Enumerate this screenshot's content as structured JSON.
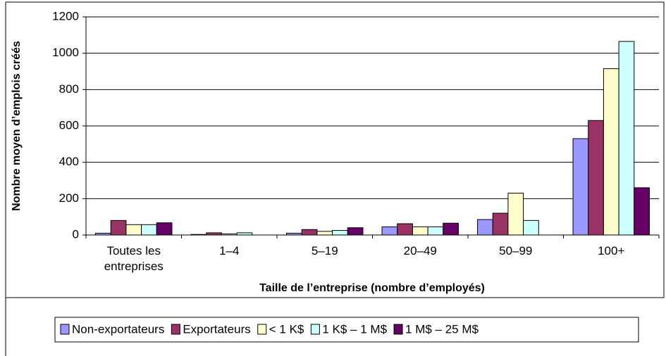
{
  "chart_data": {
    "type": "bar",
    "y_label": "Nombre moyen d’emplois créés",
    "x_label": "Taille de l’entreprise (nombre d’employés)",
    "categories": [
      "Toutes les entreprises",
      "1–4",
      "5–19",
      "20–49",
      "50–99",
      "100+"
    ],
    "series": [
      {
        "name": "Non-exportateurs",
        "color": "#9999ff",
        "values": [
          10,
          3,
          10,
          45,
          85,
          530
        ]
      },
      {
        "name": "Exportateurs",
        "color": "#993366",
        "values": [
          80,
          12,
          30,
          62,
          120,
          630
        ]
      },
      {
        "name": "< 1 K$",
        "color": "#ffffcc",
        "values": [
          57,
          6,
          20,
          45,
          230,
          915
        ]
      },
      {
        "name": "1 K$ – 1 M$",
        "color": "#ccffff",
        "values": [
          57,
          12,
          25,
          45,
          80,
          1065
        ]
      },
      {
        "name": "1 M$ – 25 M$",
        "color": "#660066",
        "values": [
          67,
          0,
          40,
          65,
          0,
          260
        ]
      }
    ],
    "ylim": [
      0,
      1200
    ],
    "yticks": [
      0,
      200,
      400,
      600,
      800,
      1000,
      1200
    ],
    "grid": true,
    "legend": "bottom"
  }
}
